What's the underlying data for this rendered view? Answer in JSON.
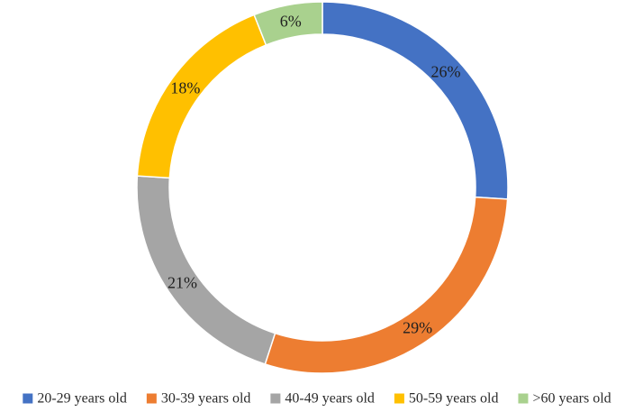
{
  "chart_data": {
    "type": "pie",
    "style": "donut",
    "categories": [
      "20-29 years old",
      "30-39 years old",
      "40-49 years old",
      "50-59 years old",
      ">60 years old"
    ],
    "values": [
      26,
      29,
      21,
      18,
      6
    ],
    "labels": [
      "26%",
      "29%",
      "21%",
      "18%",
      "6%"
    ],
    "colors": [
      "#4472C4",
      "#ED7D31",
      "#A5A5A5",
      "#FFC000",
      "#A9D18E"
    ],
    "legend_position": "bottom",
    "start_angle_deg": 0,
    "direction": "clockwise"
  }
}
